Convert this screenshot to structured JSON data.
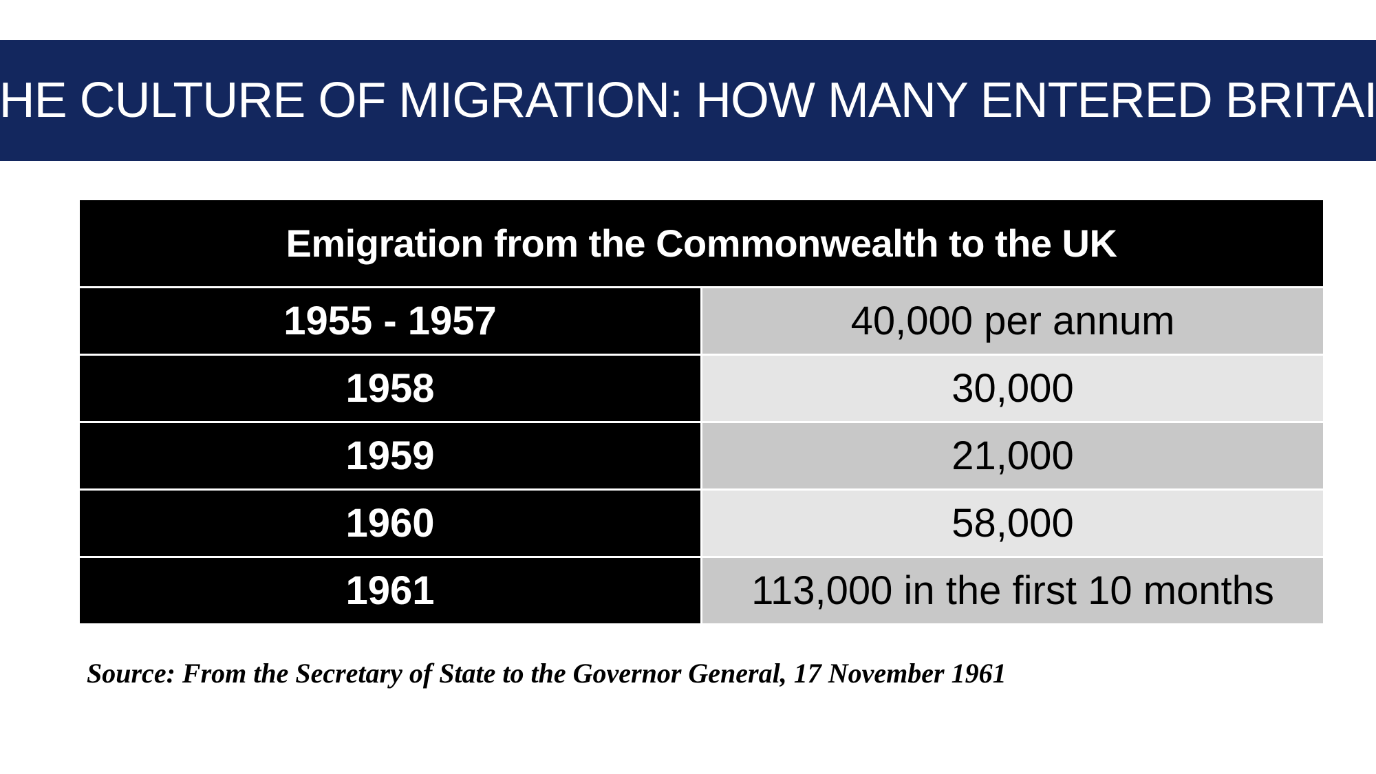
{
  "slide": {
    "title": "THE CULTURE OF MIGRATION: HOW MANY ENTERED BRITAIN",
    "banner_color": "#13275e"
  },
  "table": {
    "header": "Emigration from the Commonwealth to the UK",
    "rows": [
      {
        "year": "1955 - 1957",
        "value": "40,000 per annum"
      },
      {
        "year": "1958",
        "value": "30,000"
      },
      {
        "year": "1959",
        "value": "21,000"
      },
      {
        "year": "1960",
        "value": "58,000"
      },
      {
        "year": "1961",
        "value": "113,000 in the first 10 months"
      }
    ],
    "colors": {
      "header_bg": "#000000",
      "year_bg": "#000000",
      "value_bg_dark": "#c8c8c8",
      "value_bg_light": "#e5e5e5"
    }
  },
  "source": "Source: From the Secretary of State to the Governor General, 17 November 1961"
}
